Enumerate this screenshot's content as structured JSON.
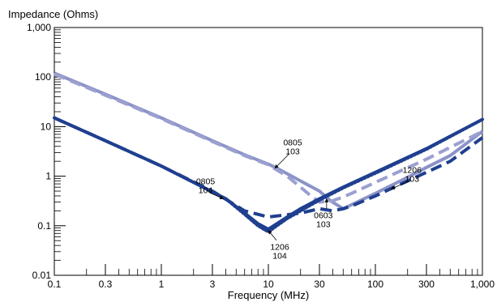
{
  "chart_data": {
    "type": "line",
    "ylabel": "Impedance (Ohms)",
    "xlabel": "Frequency (MHz)",
    "xscale": "log",
    "yscale": "log",
    "xlim": [
      0.1,
      1000
    ],
    "ylim": [
      0.01,
      1000
    ],
    "grid": false,
    "legend": "none",
    "x_ticks": [
      {
        "value": 0.1,
        "label": "0.1"
      },
      {
        "value": 0.3,
        "label": "0.3"
      },
      {
        "value": 1,
        "label": "1"
      },
      {
        "value": 3,
        "label": "3"
      },
      {
        "value": 10,
        "label": "10"
      },
      {
        "value": 30,
        "label": "30"
      },
      {
        "value": 100,
        "label": "100"
      },
      {
        "value": 300,
        "label": "300"
      },
      {
        "value": 1000,
        "label": "1,000"
      }
    ],
    "y_ticks": [
      {
        "value": 0.01,
        "label": "0.01"
      },
      {
        "value": 0.1,
        "label": "0.1"
      },
      {
        "value": 1,
        "label": "1"
      },
      {
        "value": 10,
        "label": "10"
      },
      {
        "value": 100,
        "label": "100"
      },
      {
        "value": 1000,
        "label": "1,000"
      }
    ],
    "series": [
      {
        "color": "#8c93c8",
        "style": "solid",
        "x": [
          0.1,
          0.3,
          1,
          3,
          6,
          10,
          12,
          20,
          30,
          38,
          50,
          100,
          200,
          300,
          500,
          1000
        ],
        "y": [
          120,
          45,
          15,
          5.2,
          2.7,
          1.75,
          1.45,
          0.8,
          0.5,
          0.32,
          0.22,
          0.45,
          0.95,
          1.5,
          2.6,
          8
        ]
      },
      {
        "color": "#9aa0d0",
        "style": "dashed",
        "x": [
          0.1,
          0.3,
          1,
          3,
          6,
          10,
          15,
          20,
          25,
          30,
          40,
          50,
          60,
          100,
          300,
          1000
        ],
        "y": [
          115,
          43,
          14.5,
          5,
          2.6,
          1.7,
          1.0,
          0.6,
          0.4,
          0.3,
          0.32,
          0.38,
          0.45,
          0.75,
          2.2,
          8
        ]
      },
      {
        "color": "#1f3f8f",
        "style": "solid",
        "x": [
          0.1,
          0.3,
          1,
          2,
          4,
          6,
          8,
          10,
          12,
          15,
          20,
          30,
          50,
          100,
          300,
          1000
        ],
        "y": [
          15,
          5.2,
          1.6,
          0.75,
          0.35,
          0.18,
          0.11,
          0.085,
          0.11,
          0.15,
          0.22,
          0.35,
          0.6,
          1.2,
          3.6,
          14
        ]
      },
      {
        "color": "#1f3f8f",
        "style": "dotted",
        "x": [
          0.1,
          0.3,
          1,
          2,
          4,
          6,
          8,
          10,
          12,
          15,
          20,
          30,
          50,
          100,
          300,
          1000
        ],
        "y": [
          15,
          5.2,
          1.6,
          0.75,
          0.35,
          0.17,
          0.1,
          0.075,
          0.1,
          0.14,
          0.2,
          0.33,
          0.58,
          1.15,
          3.5,
          14
        ]
      },
      {
        "color": "#1f3f8f",
        "style": "dashed",
        "x": [
          0.1,
          0.3,
          1,
          3,
          6,
          10,
          20,
          30,
          40,
          50,
          60,
          100,
          200,
          300,
          500,
          1000
        ],
        "y": [
          15,
          5.2,
          1.6,
          0.5,
          0.2,
          0.15,
          0.18,
          0.22,
          0.2,
          0.22,
          0.25,
          0.4,
          0.8,
          1.2,
          2.0,
          6
        ]
      }
    ],
    "annotations": [
      {
        "lines": [
          "0805",
          "103"
        ],
        "x": 11.5,
        "y": 1.45
      },
      {
        "lines": [
          "0805",
          "104"
        ],
        "x": 3.8,
        "y": 0.35
      },
      {
        "lines": [
          "1206",
          "104"
        ],
        "x": 10,
        "y": 0.08
      },
      {
        "lines": [
          "0603",
          "103"
        ],
        "x": 35,
        "y": 0.35
      },
      {
        "lines": [
          "1206",
          "103"
        ],
        "x": 140,
        "y": 0.55
      }
    ]
  }
}
